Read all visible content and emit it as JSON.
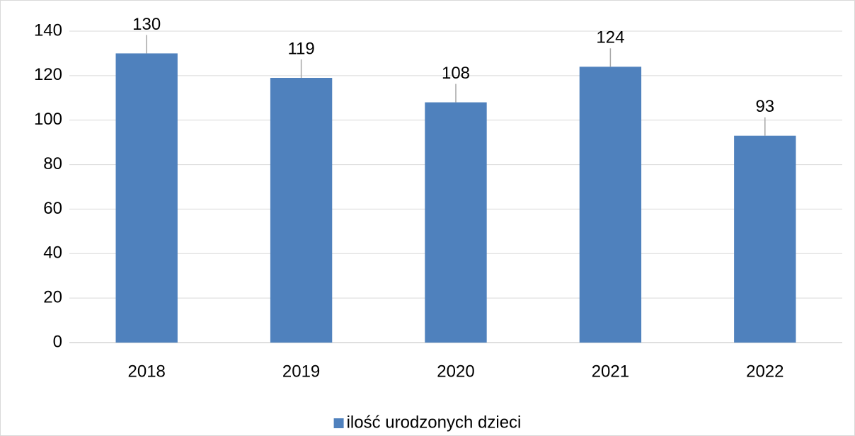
{
  "chart_data": {
    "type": "bar",
    "categories": [
      "2018",
      "2019",
      "2020",
      "2021",
      "2022"
    ],
    "series": [
      {
        "name": "ilość urodzonych dzieci",
        "color": "#4f81bd",
        "values": [
          130,
          119,
          108,
          124,
          93
        ]
      }
    ],
    "ylim": [
      0,
      140
    ],
    "yticks": [
      0,
      20,
      40,
      60,
      80,
      100,
      120,
      140
    ],
    "grid": true,
    "legend": "bottom",
    "data_labels": true
  }
}
